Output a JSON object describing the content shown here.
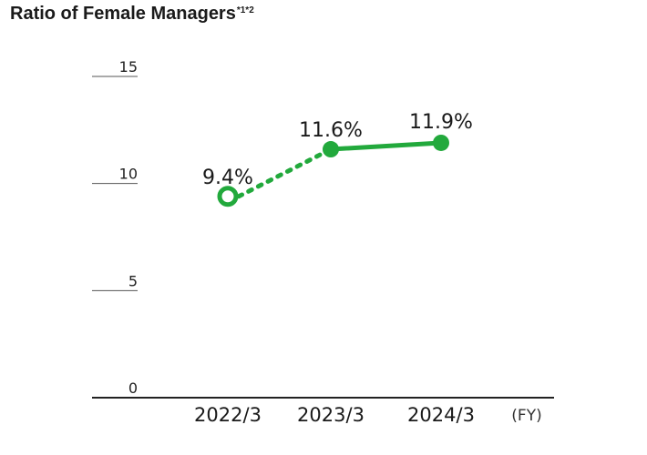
{
  "title": "Ratio of Female Managers",
  "title_note": "*1*2",
  "chart_data": {
    "type": "line",
    "title": "Ratio of Female Managers",
    "categories": [
      "2022/3",
      "2023/3",
      "2024/3"
    ],
    "values": [
      9.4,
      11.6,
      11.9
    ],
    "data_labels": [
      "9.4%",
      "11.6%",
      "11.9%"
    ],
    "x_unit_label": "(FY)",
    "ylim": [
      0,
      15
    ],
    "yticks": [
      0,
      5,
      10,
      15
    ],
    "line_color": "#22a93c",
    "segment_styles": [
      "dashed",
      "solid"
    ],
    "first_marker": "hollow",
    "grid": false
  }
}
